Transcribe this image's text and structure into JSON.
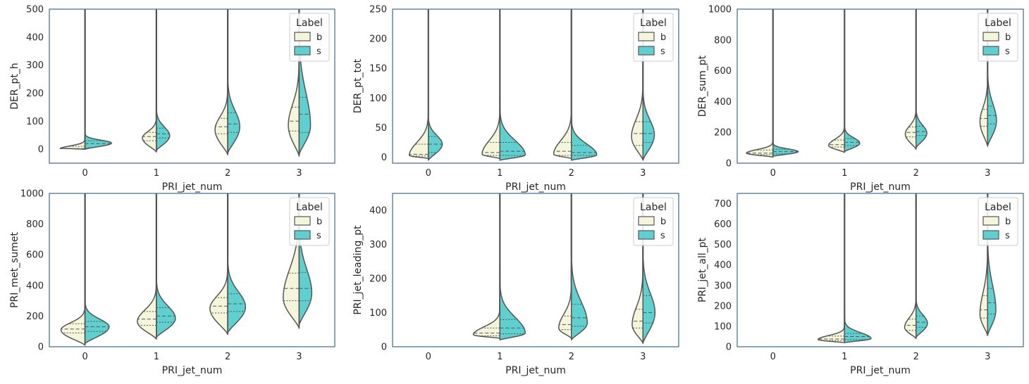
{
  "figure": {
    "layout": "2x3 grid of split violin plots"
  },
  "colors": {
    "b": "#f5f5dc",
    "s": "#5fcfcf",
    "edge": "#555555",
    "frame": "#3f6b8a"
  },
  "chart_data": [
    {
      "type": "violin",
      "title": "",
      "xlabel": "PRI_jet_num",
      "ylabel": "DER_pt_h",
      "categories": [
        "0",
        "1",
        "2",
        "3"
      ],
      "ylim": [
        -50,
        500
      ],
      "yticks": [
        0,
        100,
        200,
        300,
        400,
        500
      ],
      "legend": {
        "title": "Label",
        "position": "top-right",
        "entries": [
          "b",
          "s"
        ]
      },
      "series": [
        {
          "name": "b",
          "side": "left",
          "data": [
            {
              "x": "0",
              "min": 0,
              "max": 500,
              "q1": 0,
              "median": 2,
              "q3": 10,
              "mode": 1,
              "peak": 0.4
            },
            {
              "x": "1",
              "min": -10,
              "max": 500,
              "q1": 30,
              "median": 45,
              "q3": 60,
              "mode": 40,
              "peak": 0.22
            },
            {
              "x": "2",
              "min": -20,
              "max": 500,
              "q1": 55,
              "median": 80,
              "q3": 110,
              "mode": 70,
              "peak": 0.2
            },
            {
              "x": "3",
              "min": -25,
              "max": 500,
              "q1": 65,
              "median": 100,
              "q3": 150,
              "mode": 85,
              "peak": 0.17
            }
          ]
        },
        {
          "name": "s",
          "side": "right",
          "data": [
            {
              "x": "0",
              "min": 0,
              "max": 500,
              "q1": 5,
              "median": 20,
              "q3": 30,
              "mode": 22,
              "peak": 0.42
            },
            {
              "x": "1",
              "min": -5,
              "max": 500,
              "q1": 40,
              "median": 55,
              "q3": 75,
              "mode": 48,
              "peak": 0.21
            },
            {
              "x": "2",
              "min": -15,
              "max": 500,
              "q1": 60,
              "median": 90,
              "q3": 130,
              "mode": 80,
              "peak": 0.19
            },
            {
              "x": "3",
              "min": -20,
              "max": 500,
              "q1": 60,
              "median": 125,
              "q3": 185,
              "mode": 85,
              "peak": 0.18
            }
          ]
        }
      ]
    },
    {
      "type": "violin",
      "title": "",
      "xlabel": "PRI_jet_num",
      "ylabel": "DER_pt_tot",
      "categories": [
        "0",
        "1",
        "2",
        "3"
      ],
      "ylim": [
        -10,
        250
      ],
      "yticks": [
        0,
        50,
        100,
        150,
        200,
        250
      ],
      "legend": {
        "title": "Label",
        "position": "top-right",
        "entries": [
          "b",
          "s"
        ]
      },
      "series": [
        {
          "name": "b",
          "side": "left",
          "data": [
            {
              "x": "0",
              "min": -2,
              "max": 250,
              "q1": 2,
              "median": 5,
              "q3": 22,
              "mode": 3,
              "peak": 0.3
            },
            {
              "x": "1",
              "min": -2,
              "max": 250,
              "q1": 3,
              "median": 8,
              "q3": 25,
              "mode": 5,
              "peak": 0.28
            },
            {
              "x": "2",
              "min": -2,
              "max": 250,
              "q1": 3,
              "median": 10,
              "q3": 25,
              "mode": 5,
              "peak": 0.28
            },
            {
              "x": "3",
              "min": -5,
              "max": 250,
              "q1": 20,
              "median": 40,
              "q3": 60,
              "mode": 35,
              "peak": 0.18
            }
          ]
        },
        {
          "name": "s",
          "side": "right",
          "data": [
            {
              "x": "0",
              "min": -5,
              "max": 250,
              "q1": 8,
              "median": 22,
              "q3": 35,
              "mode": 22,
              "peak": 0.22
            },
            {
              "x": "1",
              "min": -5,
              "max": 250,
              "q1": 3,
              "median": 10,
              "q3": 25,
              "mode": 4,
              "peak": 0.4
            },
            {
              "x": "2",
              "min": -5,
              "max": 250,
              "q1": 3,
              "median": 8,
              "q3": 20,
              "mode": 4,
              "peak": 0.4
            },
            {
              "x": "3",
              "min": -5,
              "max": 250,
              "q1": 25,
              "median": 40,
              "q3": 60,
              "mode": 38,
              "peak": 0.18
            }
          ]
        }
      ]
    },
    {
      "type": "violin",
      "title": "",
      "xlabel": "PRI_jet_num",
      "ylabel": "DER_sum_pt",
      "categories": [
        "0",
        "1",
        "2",
        "3"
      ],
      "ylim": [
        0,
        1000
      ],
      "yticks": [
        0,
        200,
        400,
        600,
        800,
        1000
      ],
      "legend": {
        "title": "Label",
        "position": "top-right",
        "entries": [
          "b",
          "s"
        ]
      },
      "series": [
        {
          "name": "b",
          "side": "left",
          "data": [
            {
              "x": "0",
              "min": 40,
              "max": 1000,
              "q1": 55,
              "median": 65,
              "q3": 85,
              "mode": 65,
              "peak": 0.42
            },
            {
              "x": "1",
              "min": 70,
              "max": 1000,
              "q1": 105,
              "median": 120,
              "q3": 150,
              "mode": 115,
              "peak": 0.25
            },
            {
              "x": "2",
              "min": 90,
              "max": 1000,
              "q1": 170,
              "median": 200,
              "q3": 235,
              "mode": 190,
              "peak": 0.17
            },
            {
              "x": "3",
              "min": 110,
              "max": 1000,
              "q1": 240,
              "median": 290,
              "q3": 350,
              "mode": 270,
              "peak": 0.12
            }
          ]
        },
        {
          "name": "s",
          "side": "right",
          "data": [
            {
              "x": "0",
              "min": 45,
              "max": 1000,
              "q1": 60,
              "median": 75,
              "q3": 90,
              "mode": 75,
              "peak": 0.4
            },
            {
              "x": "1",
              "min": 75,
              "max": 1000,
              "q1": 115,
              "median": 135,
              "q3": 160,
              "mode": 130,
              "peak": 0.24
            },
            {
              "x": "2",
              "min": 100,
              "max": 1000,
              "q1": 180,
              "median": 205,
              "q3": 240,
              "mode": 195,
              "peak": 0.17
            },
            {
              "x": "3",
              "min": 110,
              "max": 1000,
              "q1": 255,
              "median": 310,
              "q3": 370,
              "mode": 275,
              "peak": 0.14
            }
          ]
        }
      ]
    },
    {
      "type": "violin",
      "title": "",
      "xlabel": "PRI_jet_num",
      "ylabel": "PRI_met_sumet",
      "categories": [
        "0",
        "1",
        "2",
        "3"
      ],
      "ylim": [
        0,
        1000
      ],
      "yticks": [
        0,
        200,
        400,
        600,
        800,
        1000
      ],
      "legend": {
        "title": "Label",
        "position": "top-right",
        "entries": [
          "b",
          "s"
        ]
      },
      "series": [
        {
          "name": "b",
          "side": "left",
          "data": [
            {
              "x": "0",
              "min": 10,
              "max": 1000,
              "q1": 90,
              "median": 115,
              "q3": 150,
              "mode": 110,
              "peak": 0.38
            },
            {
              "x": "1",
              "min": 50,
              "max": 1000,
              "q1": 140,
              "median": 180,
              "q3": 230,
              "mode": 165,
              "peak": 0.3
            },
            {
              "x": "2",
              "min": 80,
              "max": 1000,
              "q1": 220,
              "median": 265,
              "q3": 320,
              "mode": 250,
              "peak": 0.28
            },
            {
              "x": "3",
              "min": 120,
              "max": 1000,
              "q1": 300,
              "median": 380,
              "q3": 480,
              "mode": 320,
              "peak": 0.25
            }
          ]
        },
        {
          "name": "s",
          "side": "right",
          "data": [
            {
              "x": "0",
              "min": 20,
              "max": 1000,
              "q1": 100,
              "median": 130,
              "q3": 165,
              "mode": 130,
              "peak": 0.38
            },
            {
              "x": "1",
              "min": 60,
              "max": 1000,
              "q1": 160,
              "median": 200,
              "q3": 255,
              "mode": 185,
              "peak": 0.3
            },
            {
              "x": "2",
              "min": 90,
              "max": 1000,
              "q1": 230,
              "median": 280,
              "q3": 345,
              "mode": 260,
              "peak": 0.28
            },
            {
              "x": "3",
              "min": 140,
              "max": 1000,
              "q1": 300,
              "median": 380,
              "q3": 485,
              "mode": 350,
              "peak": 0.2
            }
          ]
        }
      ]
    },
    {
      "type": "violin",
      "title": "",
      "xlabel": "PRI_jet_num",
      "ylabel": "PRI_jet_leading_pt",
      "categories": [
        "0",
        "1",
        "2",
        "3"
      ],
      "ylim": [
        0,
        450
      ],
      "yticks": [
        0,
        100,
        200,
        300,
        400
      ],
      "legend": {
        "title": "Label",
        "position": "top-right",
        "entries": [
          "b",
          "s"
        ]
      },
      "series": [
        {
          "name": "b",
          "side": "left",
          "data": [
            {
              "x": "0",
              "empty": true
            },
            {
              "x": "1",
              "min": 25,
              "max": 450,
              "q1": 32,
              "median": 40,
              "q3": 55,
              "mode": 35,
              "peak": 0.42
            },
            {
              "x": "2",
              "min": 25,
              "max": 450,
              "q1": 50,
              "median": 65,
              "q3": 90,
              "mode": 55,
              "peak": 0.2
            },
            {
              "x": "3",
              "min": 10,
              "max": 450,
              "q1": 55,
              "median": 75,
              "q3": 110,
              "mode": 65,
              "peak": 0.17
            }
          ]
        },
        {
          "name": "s",
          "side": "right",
          "data": [
            {
              "x": "0",
              "empty": true
            },
            {
              "x": "1",
              "min": 20,
              "max": 450,
              "q1": 38,
              "median": 55,
              "q3": 80,
              "mode": 40,
              "peak": 0.4
            },
            {
              "x": "2",
              "min": 20,
              "max": 450,
              "q1": 60,
              "median": 85,
              "q3": 125,
              "mode": 70,
              "peak": 0.25
            },
            {
              "x": "3",
              "min": 10,
              "max": 450,
              "q1": 70,
              "median": 100,
              "q3": 150,
              "mode": 100,
              "peak": 0.19
            }
          ]
        }
      ]
    },
    {
      "type": "violin",
      "title": "",
      "xlabel": "PRI_jet_num",
      "ylabel": "PRI_jet_all_pt",
      "categories": [
        "0",
        "1",
        "2",
        "3"
      ],
      "ylim": [
        0,
        750
      ],
      "yticks": [
        0,
        100,
        200,
        300,
        400,
        500,
        600,
        700
      ],
      "legend": {
        "title": "Label",
        "position": "top-right",
        "entries": [
          "b",
          "s"
        ]
      },
      "series": [
        {
          "name": "b",
          "side": "left",
          "data": [
            {
              "x": "0",
              "flat": true
            },
            {
              "x": "1",
              "min": 20,
              "max": 750,
              "q1": 30,
              "median": 38,
              "q3": 52,
              "mode": 35,
              "peak": 0.42
            },
            {
              "x": "2",
              "min": 40,
              "max": 750,
              "q1": 80,
              "median": 105,
              "q3": 135,
              "mode": 95,
              "peak": 0.18
            },
            {
              "x": "3",
              "min": 55,
              "max": 750,
              "q1": 140,
              "median": 180,
              "q3": 250,
              "mode": 160,
              "peak": 0.12
            }
          ]
        },
        {
          "name": "s",
          "side": "right",
          "data": [
            {
              "x": "0",
              "flat": true
            },
            {
              "x": "1",
              "min": 20,
              "max": 750,
              "q1": 35,
              "median": 50,
              "q3": 65,
              "mode": 40,
              "peak": 0.42
            },
            {
              "x": "2",
              "min": 45,
              "max": 750,
              "q1": 95,
              "median": 120,
              "q3": 150,
              "mode": 115,
              "peak": 0.18
            },
            {
              "x": "3",
              "min": 55,
              "max": 750,
              "q1": 160,
              "median": 215,
              "q3": 285,
              "mode": 180,
              "peak": 0.13
            }
          ]
        }
      ]
    }
  ]
}
